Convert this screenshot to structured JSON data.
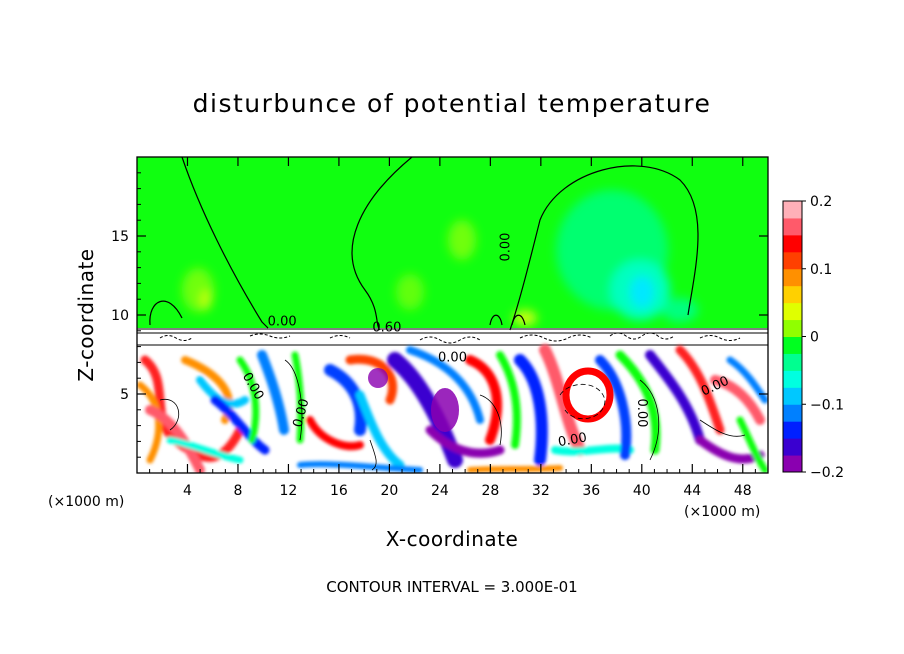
{
  "chart_data": {
    "type": "heatmap",
    "title": "disturbunce of potential temperature",
    "xlabel": "X-coordinate",
    "ylabel": "Z-coordinate",
    "x_unit_left": "(×1000 m)",
    "x_unit_right": "(×1000 m)",
    "xlim": [
      0,
      50
    ],
    "ylim": [
      0,
      20
    ],
    "x_ticks": [
      4,
      8,
      12,
      16,
      20,
      24,
      28,
      32,
      36,
      40,
      44,
      48
    ],
    "y_ticks": [
      5,
      10,
      15
    ],
    "colorbar": {
      "range": [
        -0.2,
        0.2
      ],
      "ticks": [
        {
          "value": 0.2,
          "label": "0.2"
        },
        {
          "value": 0.1,
          "label": "0.1"
        },
        {
          "value": 0,
          "label": "0"
        },
        {
          "value": -0.1,
          "label": "−0.1"
        },
        {
          "value": -0.2,
          "label": "−0.2"
        }
      ],
      "colors": [
        "#8a00b0",
        "#3a00d0",
        "#0020ff",
        "#0080ff",
        "#00c8ff",
        "#00ffe0",
        "#00ff90",
        "#00ff20",
        "#90ff00",
        "#e0ff00",
        "#ffd000",
        "#ff9000",
        "#ff4000",
        "#ff0000",
        "#ff5a6a",
        "#ffb0b8"
      ]
    },
    "contour_labels": [
      {
        "x": 11.5,
        "z": 9.6,
        "text": "0.00",
        "rotate": 0
      },
      {
        "x": 19.8,
        "z": 9.2,
        "text": "0.60",
        "rotate": 0
      },
      {
        "x": 25.0,
        "z": 7.3,
        "text": "0.00",
        "rotate": 0
      },
      {
        "x": 29.2,
        "z": 14.3,
        "text": "0.00",
        "rotate": -90
      },
      {
        "x": 9.2,
        "z": 5.5,
        "text": "0.00",
        "rotate": 60
      },
      {
        "x": 13.0,
        "z": 3.8,
        "text": "0.00",
        "rotate": -75
      },
      {
        "x": 34.5,
        "z": 2.1,
        "text": "0.00",
        "rotate": -10
      },
      {
        "x": 40.0,
        "z": 3.8,
        "text": "0.00",
        "rotate": 90
      },
      {
        "x": 45.8,
        "z": 5.5,
        "text": "0.00",
        "rotate": -25
      }
    ],
    "contour_interval_text": "CONTOUR INTERVAL = 3.000E-01"
  }
}
